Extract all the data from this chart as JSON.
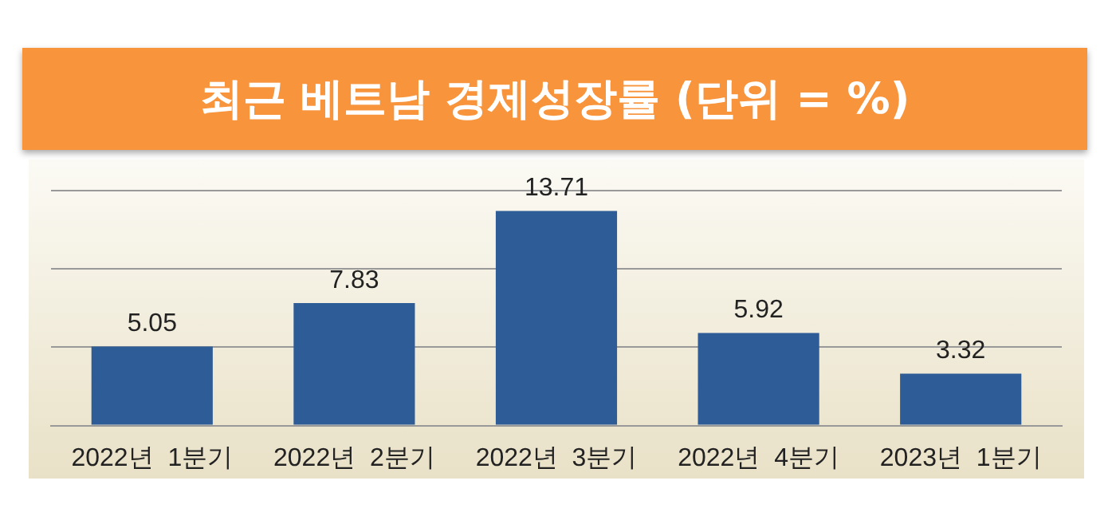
{
  "chart_data": {
    "type": "bar",
    "title": "최근 베트남 경제성장률 (단위 = %)",
    "categories": [
      "2022년  1분기",
      "2022년  2분기",
      "2022년  3분기",
      "2022년  4분기",
      "2023년  1분기"
    ],
    "values": [
      5.05,
      7.83,
      13.71,
      5.92,
      3.32
    ],
    "color": "#2e5c96",
    "ylim": [
      0,
      17
    ],
    "yticks": [
      0,
      5,
      10,
      15
    ],
    "grid": "y",
    "tick_labels": "x",
    "data_labels": true,
    "legend": false
  }
}
